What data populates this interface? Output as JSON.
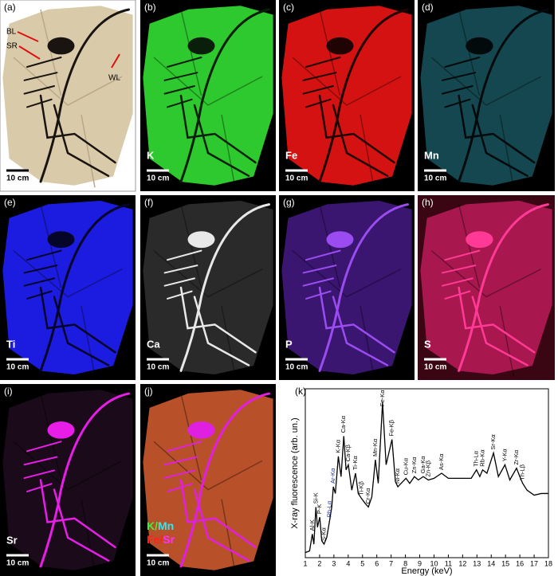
{
  "panels": [
    {
      "letter": "(a)",
      "bg": "#ffffff",
      "plate": "#d9cbaa",
      "bone": "#1a1410",
      "letter_color": "#000000",
      "scale": "10 cm",
      "annotations": [
        {
          "text": "BL"
        },
        {
          "text": "SR"
        },
        {
          "text": "WL"
        }
      ]
    },
    {
      "letter": "(b)",
      "element": "K",
      "bg": "#000000",
      "plate": "#2ec92e",
      "bone": "#0a1f0a",
      "letter_color": "#ffffff",
      "scale": "10 cm"
    },
    {
      "letter": "(c)",
      "element": "Fe",
      "bg": "#000000",
      "plate": "#d41212",
      "bone": "#200404",
      "letter_color": "#ffffff",
      "scale": "10 cm"
    },
    {
      "letter": "(d)",
      "element": "Mn",
      "bg": "#000000",
      "plate": "#14474f",
      "bone": "#020a0c",
      "letter_color": "#ffffff",
      "scale": "10 cm"
    },
    {
      "letter": "(e)",
      "element": "Ti",
      "bg": "#000000",
      "plate": "#1c1ce0",
      "bone": "#05052a",
      "letter_color": "#ffffff",
      "scale": "10 cm"
    },
    {
      "letter": "(f)",
      "element": "Ca",
      "bg": "#000000",
      "plate": "#2a2a2a",
      "bone": "#e8e8e8",
      "letter_color": "#ffffff",
      "scale": "10 cm"
    },
    {
      "letter": "(g)",
      "element": "P",
      "bg": "#000000",
      "plate": "#3a1670",
      "bone": "#9a4cf0",
      "letter_color": "#ffffff",
      "scale": "10 cm"
    },
    {
      "letter": "(h)",
      "element": "S",
      "bg": "#3a0614",
      "plate": "#a8184e",
      "bone": "#ff3a96",
      "letter_color": "#ffffff",
      "scale": "10 cm"
    },
    {
      "letter": "(i)",
      "element": "Sr",
      "bg": "#000000",
      "plate": "#1a0a1a",
      "bone": "#e81ee8",
      "letter_color": "#ffffff",
      "scale": "10 cm"
    },
    {
      "letter": "(j)",
      "bg": "#000000",
      "plate": "#b8502a",
      "bone": "#e020e0",
      "letter_color": "#ffffff",
      "scale": "10 cm",
      "legend": [
        [
          {
            "text": "K",
            "color": "#3ff03f"
          },
          {
            "text": "/",
            "color": "#3ff03f"
          },
          {
            "text": "Mn",
            "color": "#30e8f0"
          }
        ],
        [
          {
            "text": "Fe",
            "color": "#ff2020"
          },
          {
            "text": "/",
            "color": "#ff2020"
          },
          {
            "text": "Sr",
            "color": "#ff30ff"
          }
        ]
      ]
    }
  ],
  "chart_data": {
    "type": "line",
    "panel": "(k)",
    "xlabel": "Energy (keV)",
    "ylabel": "X-ray fluorescence (arb. un.)",
    "xlim": [
      1,
      18
    ],
    "xticks": [
      1,
      2,
      3,
      4,
      5,
      6,
      7,
      8,
      9,
      10,
      11,
      12,
      13,
      14,
      15,
      16,
      17,
      18
    ],
    "ylim": [
      0,
      100
    ],
    "color": "#000000",
    "x": [
      1.0,
      1.3,
      1.49,
      1.6,
      1.74,
      1.85,
      2.01,
      2.15,
      2.31,
      2.5,
      2.7,
      2.85,
      2.96,
      3.1,
      3.31,
      3.5,
      3.69,
      3.85,
      4.01,
      4.25,
      4.51,
      4.7,
      4.93,
      5.2,
      5.41,
      5.65,
      5.9,
      6.1,
      6.4,
      6.65,
      7.06,
      7.3,
      7.47,
      7.7,
      8.04,
      8.3,
      8.63,
      8.9,
      9.25,
      9.6,
      10.0,
      10.53,
      11.0,
      12.0,
      12.6,
      12.97,
      13.2,
      13.4,
      13.7,
      14.16,
      14.5,
      14.96,
      15.3,
      15.77,
      16.0,
      16.2,
      16.5,
      17.0,
      17.5,
      18.0
    ],
    "values": [
      3,
      4,
      14,
      8,
      30,
      18,
      24,
      10,
      8,
      12,
      22,
      30,
      42,
      38,
      60,
      48,
      72,
      52,
      55,
      40,
      50,
      38,
      35,
      32,
      30,
      36,
      58,
      44,
      92,
      55,
      70,
      45,
      42,
      44,
      47,
      44,
      48,
      46,
      48,
      46,
      47,
      50,
      47,
      47,
      47,
      52,
      48,
      52,
      50,
      62,
      48,
      55,
      46,
      53,
      48,
      44,
      40,
      37,
      38,
      38
    ],
    "annotations": [
      {
        "text": "Al-K",
        "x": 1.49,
        "color": "#000000"
      },
      {
        "text": "Si-K",
        "x": 1.74,
        "color": "#000000"
      },
      {
        "text": "P-K",
        "x": 2.01,
        "color": "#000000"
      },
      {
        "text": "S-Kα",
        "x": 2.31,
        "color": "#000000"
      },
      {
        "text": "Rh-Lα",
        "x": 2.7,
        "color": "#1a2a9a"
      },
      {
        "text": "Ar-Kα",
        "x": 2.96,
        "color": "#1a2a9a"
      },
      {
        "text": "K-Kα",
        "x": 3.31,
        "color": "#000000"
      },
      {
        "text": "Ca-Kα",
        "x": 3.69,
        "color": "#000000"
      },
      {
        "text": "Ca-Kβ",
        "x": 4.01,
        "color": "#000000"
      },
      {
        "text": "Ti-Kα",
        "x": 4.51,
        "color": "#000000"
      },
      {
        "text": "Ti-Kβ",
        "x": 4.93,
        "color": "#000000"
      },
      {
        "text": "Cr-Kα",
        "x": 5.41,
        "color": "#000000"
      },
      {
        "text": "Mn-Kα",
        "x": 5.9,
        "color": "#000000"
      },
      {
        "text": "Fe-Kα",
        "x": 6.4,
        "color": "#000000"
      },
      {
        "text": "Fe-Kβ",
        "x": 7.06,
        "color": "#000000"
      },
      {
        "text": "Ni-Kα",
        "x": 7.47,
        "color": "#000000"
      },
      {
        "text": "Cu-Kα",
        "x": 8.04,
        "color": "#000000"
      },
      {
        "text": "Zn-Kα",
        "x": 8.63,
        "color": "#000000"
      },
      {
        "text": "Ga-Kα",
        "x": 9.25,
        "color": "#000000"
      },
      {
        "text": "Zn-Kβ",
        "x": 9.6,
        "color": "#000000"
      },
      {
        "text": "As-Kα",
        "x": 10.53,
        "color": "#000000"
      },
      {
        "text": "Th-Lα",
        "x": 12.97,
        "color": "#000000"
      },
      {
        "text": "Rb-Kα",
        "x": 13.4,
        "color": "#000000"
      },
      {
        "text": "Sr-Kα",
        "x": 14.16,
        "color": "#000000"
      },
      {
        "text": "Y-Kα",
        "x": 14.96,
        "color": "#000000"
      },
      {
        "text": "Zr-Kα",
        "x": 15.77,
        "color": "#000000"
      },
      {
        "text": "Th-Lβ",
        "x": 16.2,
        "color": "#000000"
      }
    ]
  }
}
